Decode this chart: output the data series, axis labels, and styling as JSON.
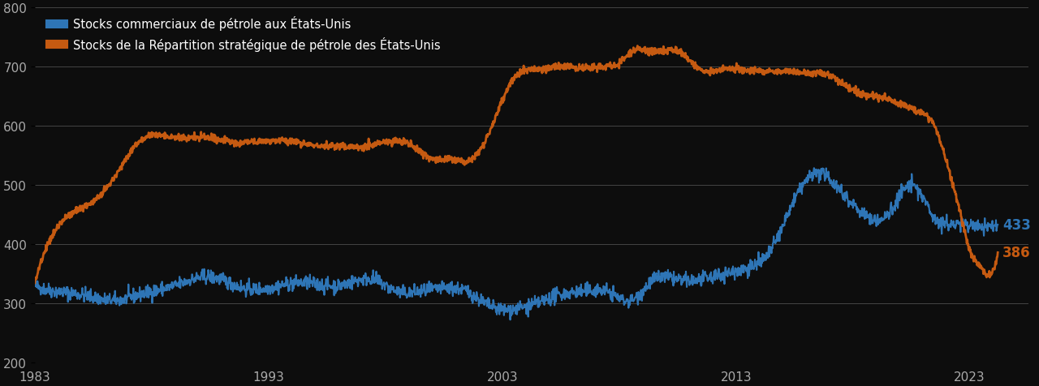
{
  "title": "",
  "legend1": "Stocks commerciaux de pétrole aux États-Unis",
  "legend2": "Stocks de la Répartition stratégique de pétrole des États-Unis",
  "color_blue": "#2E75B6",
  "color_orange": "#C55A11",
  "bg_color": "#0D0D0D",
  "text_color": "#AAAAAA",
  "grid_color": "#444444",
  "ylim": [
    200,
    800
  ],
  "yticks": [
    200,
    300,
    400,
    500,
    600,
    700,
    800
  ],
  "xlabel_ticks": [
    1983,
    1993,
    2003,
    2013,
    2023
  ],
  "end_label_blue": "433",
  "end_label_orange": "386",
  "linewidth": 1.5
}
